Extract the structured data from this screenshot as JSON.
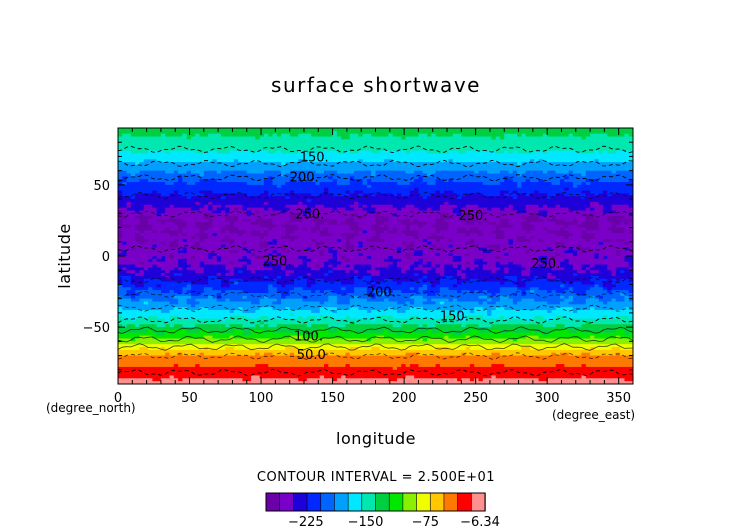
{
  "chart_data": {
    "type": "heatmap",
    "title": "surface shortwave",
    "xlabel": "longitude",
    "ylabel": "latitude",
    "x_unit_label": "(degree_east)",
    "y_unit_label": "(degree_north)",
    "xlim": [
      0,
      360
    ],
    "ylim": [
      -90,
      90
    ],
    "x_ticks": [
      "0",
      "50",
      "100",
      "150",
      "200",
      "250",
      "300",
      "350"
    ],
    "x_tick_values": [
      0,
      50,
      100,
      150,
      200,
      250,
      300,
      350
    ],
    "y_ticks": [
      "50",
      "0",
      "−50"
    ],
    "y_tick_values": [
      50,
      0,
      -50
    ],
    "contour_interval_text": "CONTOUR INTERVAL = 2.500E+01",
    "contour_interval": 25,
    "zonal_profile": {
      "latitudes": [
        90,
        75,
        65,
        55,
        45,
        35,
        25,
        15,
        5,
        -5,
        -15,
        -25,
        -35,
        -45,
        -55,
        -62,
        -68,
        -75,
        -82,
        -90
      ],
      "values": [
        -130,
        -150,
        -175,
        -200,
        -220,
        -240,
        -258,
        -255,
        -250,
        -245,
        -230,
        -205,
        -180,
        -150,
        -115,
        -85,
        -55,
        -40,
        -25,
        -10
      ]
    },
    "contour_labels": [
      {
        "text": "150.",
        "lon": 127,
        "lat": 70
      },
      {
        "text": "200.",
        "lon": 120,
        "lat": 56
      },
      {
        "text": "250.",
        "lon": 124,
        "lat": 30
      },
      {
        "text": "250.",
        "lon": 238,
        "lat": 29
      },
      {
        "text": "250.",
        "lon": 101,
        "lat": -3
      },
      {
        "text": "250.",
        "lon": 289,
        "lat": -5
      },
      {
        "text": "200.",
        "lon": 174,
        "lat": -25
      },
      {
        "text": "150.",
        "lon": 225,
        "lat": -42
      },
      {
        "text": "100.",
        "lon": 123,
        "lat": -56
      },
      {
        "text": "50.0",
        "lon": 125,
        "lat": -69
      }
    ],
    "colorbar": {
      "colors": [
        "#6a00a8",
        "#7a00c8",
        "#1e00d8",
        "#0028ff",
        "#0064ff",
        "#00a0ff",
        "#00e8ff",
        "#00e8b0",
        "#00d040",
        "#00e800",
        "#88f000",
        "#f0ff00",
        "#ffc800",
        "#ff7800",
        "#ff0000",
        "#ff9090"
      ],
      "labels": [
        "−225",
        "−150",
        "−75",
        "−6.34"
      ],
      "label_values": [
        -225,
        -150,
        -75,
        -6.34
      ],
      "min": -275,
      "max": 0
    }
  }
}
